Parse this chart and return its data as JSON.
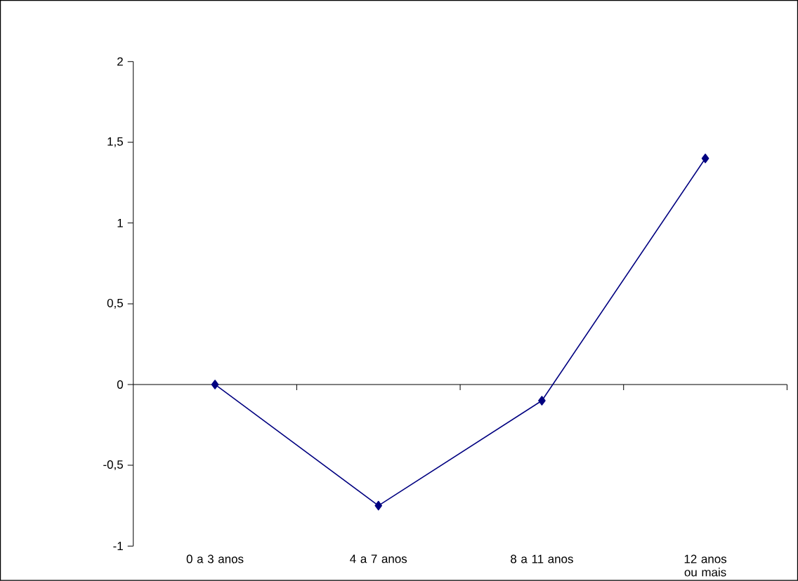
{
  "chart_data": {
    "type": "line",
    "categories": [
      "0 a 3 anos",
      "4 a 7 anos",
      "8 a 11 anos",
      "12 anos ou mais"
    ],
    "series": [
      {
        "color": "#000080",
        "values": [
          0,
          -0.75,
          -0.1,
          1.4
        ]
      }
    ],
    "ylim": [
      -1,
      2
    ],
    "yticks": [
      {
        "value": -1,
        "label": "-1"
      },
      {
        "value": -0.5,
        "label": "-0,5"
      },
      {
        "value": 0,
        "label": "0"
      },
      {
        "value": 0.5,
        "label": "0,5"
      },
      {
        "value": 1,
        "label": "1"
      },
      {
        "value": 1.5,
        "label": "1,5"
      },
      {
        "value": 2,
        "label": "2"
      }
    ],
    "marker": "diamond",
    "line_style": "solid"
  }
}
